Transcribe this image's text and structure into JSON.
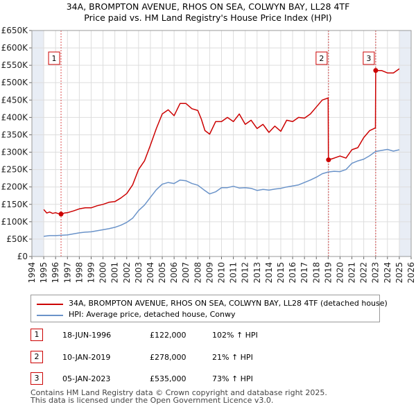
{
  "title": {
    "line1": "34A, BROMPTON AVENUE, RHOS ON SEA, COLWYN BAY, LL28 4TF",
    "line2": "Price paid vs. HM Land Registry's House Price Index (HPI)"
  },
  "colors": {
    "red": "#cc0000",
    "blue": "#6a93c9",
    "grid": "#dddddd",
    "shade": "#e8edf5"
  },
  "chart_data": {
    "type": "line",
    "title": "Price paid vs. HM Land Registry's House Price Index (HPI)",
    "xlabel": "",
    "ylabel": "",
    "xlim": [
      1994,
      2026
    ],
    "ylim": [
      0,
      650000
    ],
    "y_ticks": [
      {
        "value": 0,
        "label": "£0"
      },
      {
        "value": 50000,
        "label": "£50K"
      },
      {
        "value": 100000,
        "label": "£100K"
      },
      {
        "value": 150000,
        "label": "£150K"
      },
      {
        "value": 200000,
        "label": "£200K"
      },
      {
        "value": 250000,
        "label": "£250K"
      },
      {
        "value": 300000,
        "label": "£300K"
      },
      {
        "value": 350000,
        "label": "£350K"
      },
      {
        "value": 400000,
        "label": "£400K"
      },
      {
        "value": 450000,
        "label": "£450K"
      },
      {
        "value": 500000,
        "label": "£500K"
      },
      {
        "value": 550000,
        "label": "£550K"
      },
      {
        "value": 600000,
        "label": "£600K"
      },
      {
        "value": 650000,
        "label": "£650K"
      }
    ],
    "x_ticks": [
      "1994",
      "1995",
      "1996",
      "1997",
      "1998",
      "1999",
      "2000",
      "2001",
      "2002",
      "2003",
      "2004",
      "2005",
      "2006",
      "2007",
      "2008",
      "2009",
      "2010",
      "2011",
      "2012",
      "2013",
      "2014",
      "2015",
      "2016",
      "2017",
      "2018",
      "2019",
      "2020",
      "2021",
      "2022",
      "2023",
      "2024",
      "2025",
      "2026"
    ],
    "shaded_ranges": [
      [
        1994,
        1995
      ],
      [
        2025,
        2026
      ]
    ],
    "series": [
      {
        "name": "34A, BROMPTON AVENUE, RHOS ON SEA, COLWYN BAY, LL28 4TF (detached house)",
        "color": "#cc0000",
        "x": [
          1995.0,
          1995.25,
          1995.5,
          1995.75,
          1996.0,
          1996.25,
          1996.46,
          1996.75,
          1997.0,
          1997.5,
          1998.0,
          1998.5,
          1999.0,
          1999.5,
          2000.0,
          2000.5,
          2001.0,
          2001.5,
          2002.0,
          2002.5,
          2003.0,
          2003.5,
          2004.0,
          2004.5,
          2005.0,
          2005.5,
          2006.0,
          2006.5,
          2007.0,
          2007.5,
          2008.0,
          2008.3,
          2008.6,
          2009.0,
          2009.5,
          2010.0,
          2010.5,
          2011.0,
          2011.5,
          2012.0,
          2012.5,
          2013.0,
          2013.5,
          2014.0,
          2014.5,
          2015.0,
          2015.5,
          2016.0,
          2016.5,
          2017.0,
          2017.5,
          2018.0,
          2018.5,
          2019.0,
          2019.02,
          2019.5,
          2020.0,
          2020.5,
          2021.0,
          2021.5,
          2022.0,
          2022.5,
          2022.99,
          2023.01,
          2023.5,
          2024.0,
          2024.5,
          2025.0
        ],
        "values": [
          135000,
          125000,
          128000,
          124000,
          126000,
          123000,
          122000,
          125000,
          126000,
          131000,
          137000,
          140000,
          140000,
          146000,
          150000,
          156000,
          158000,
          168000,
          181000,
          206000,
          250000,
          275000,
          320000,
          368000,
          410000,
          422000,
          405000,
          440000,
          440000,
          425000,
          420000,
          395000,
          362000,
          352000,
          388000,
          388000,
          400000,
          388000,
          410000,
          380000,
          392000,
          368000,
          380000,
          357000,
          375000,
          360000,
          392000,
          388000,
          400000,
          398000,
          410000,
          430000,
          450000,
          456000,
          278000,
          283000,
          289000,
          283000,
          307000,
          313000,
          342000,
          362000,
          370000,
          535000,
          535000,
          528000,
          528000,
          540000
        ]
      },
      {
        "name": "HPI: Average price, detached house, Conwy",
        "color": "#6a93c9",
        "x": [
          1995.0,
          1995.5,
          1996.0,
          1996.5,
          1997.0,
          1997.5,
          1998.0,
          1998.5,
          1999.0,
          1999.5,
          2000.0,
          2000.5,
          2001.0,
          2001.5,
          2002.0,
          2002.5,
          2003.0,
          2003.5,
          2004.0,
          2004.5,
          2005.0,
          2005.5,
          2006.0,
          2006.5,
          2007.0,
          2007.5,
          2008.0,
          2008.5,
          2009.0,
          2009.5,
          2010.0,
          2010.5,
          2011.0,
          2011.5,
          2012.0,
          2012.5,
          2013.0,
          2013.5,
          2014.0,
          2014.5,
          2015.0,
          2015.5,
          2016.0,
          2016.5,
          2017.0,
          2017.5,
          2018.0,
          2018.5,
          2019.0,
          2019.5,
          2020.0,
          2020.5,
          2021.0,
          2021.5,
          2022.0,
          2022.5,
          2023.0,
          2023.5,
          2024.0,
          2024.5,
          2025.0
        ],
        "values": [
          58000,
          60000,
          60000,
          61000,
          62000,
          65000,
          68000,
          70000,
          71000,
          74000,
          77000,
          80000,
          84000,
          90000,
          98000,
          110000,
          132000,
          148000,
          170000,
          192000,
          208000,
          213000,
          210000,
          220000,
          218000,
          210000,
          205000,
          192000,
          180000,
          186000,
          198000,
          198000,
          202000,
          197000,
          198000,
          196000,
          190000,
          193000,
          191000,
          194000,
          196000,
          200000,
          203000,
          206000,
          213000,
          220000,
          228000,
          238000,
          243000,
          245000,
          244000,
          250000,
          268000,
          275000,
          280000,
          290000,
          302000,
          305000,
          308000,
          303000,
          307000
        ]
      }
    ],
    "sales": [
      {
        "n": "1",
        "x": 1996.46,
        "value": 122000,
        "date": "18-JUN-1996",
        "price": "£122,000",
        "hpi": "102% ↑ HPI"
      },
      {
        "n": "2",
        "x": 2019.03,
        "value": 278000,
        "date": "10-JAN-2019",
        "price": "£278,000",
        "hpi": "21% ↑ HPI"
      },
      {
        "n": "3",
        "x": 2023.01,
        "value": 535000,
        "date": "05-JAN-2023",
        "price": "£535,000",
        "hpi": "73% ↑ HPI"
      }
    ]
  },
  "legend": {
    "red_label": "34A, BROMPTON AVENUE, RHOS ON SEA, COLWYN BAY, LL28 4TF (detached house)",
    "blue_label": "HPI: Average price, detached house, Conwy"
  },
  "footer": {
    "line1": "Contains HM Land Registry data © Crown copyright and database right 2025.",
    "line2": "This data is licensed under the Open Government Licence v3.0."
  }
}
